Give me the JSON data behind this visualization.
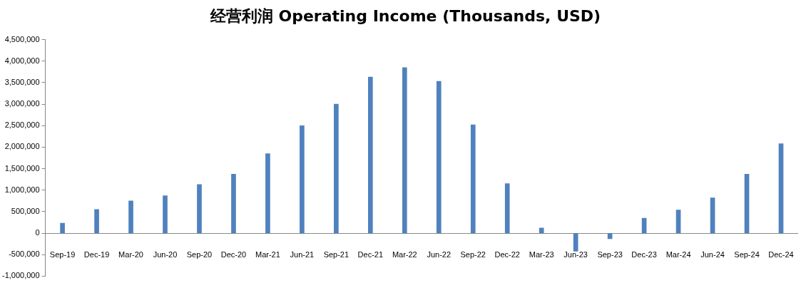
{
  "chart_data": {
    "type": "bar",
    "title": "经营利润 Operating Income (Thousands, USD)",
    "categories": [
      "Sep-19",
      "Dec-19",
      "Mar-20",
      "Jun-20",
      "Sep-20",
      "Dec-20",
      "Mar-21",
      "Jun-21",
      "Sep-21",
      "Dec-21",
      "Mar-22",
      "Jun-22",
      "Sep-22",
      "Dec-22",
      "Mar-23",
      "Jun-23",
      "Sep-23",
      "Dec-23",
      "Mar-24",
      "Jun-24",
      "Sep-24",
      "Dec-24"
    ],
    "values": [
      230000,
      550000,
      750000,
      870000,
      1130000,
      1370000,
      1850000,
      2500000,
      3000000,
      3630000,
      3850000,
      3530000,
      2520000,
      1150000,
      120000,
      -420000,
      -130000,
      350000,
      540000,
      820000,
      1370000,
      2080000
    ],
    "color": "#4f81bd",
    "ylim": [
      -1000000,
      4500000
    ],
    "yticks": [
      {
        "value": -1000000,
        "label": "-1,000,000"
      },
      {
        "value": -500000,
        "label": "-500,000"
      },
      0,
      {
        "value": 500000,
        "label": "500,000"
      },
      {
        "value": 1000000,
        "label": "1,000,000"
      },
      {
        "value": 1500000,
        "label": "1,500,000"
      },
      {
        "value": 2000000,
        "label": "2,000,000"
      },
      {
        "value": 2500000,
        "label": "2,500,000"
      },
      {
        "value": 3000000,
        "label": "3,000,000"
      },
      {
        "value": 3500000,
        "label": "3,500,000"
      },
      {
        "value": 4000000,
        "label": "4,000,000"
      },
      {
        "value": 4500000,
        "label": "4,500,000"
      }
    ],
    "grid": false,
    "legend": false
  }
}
